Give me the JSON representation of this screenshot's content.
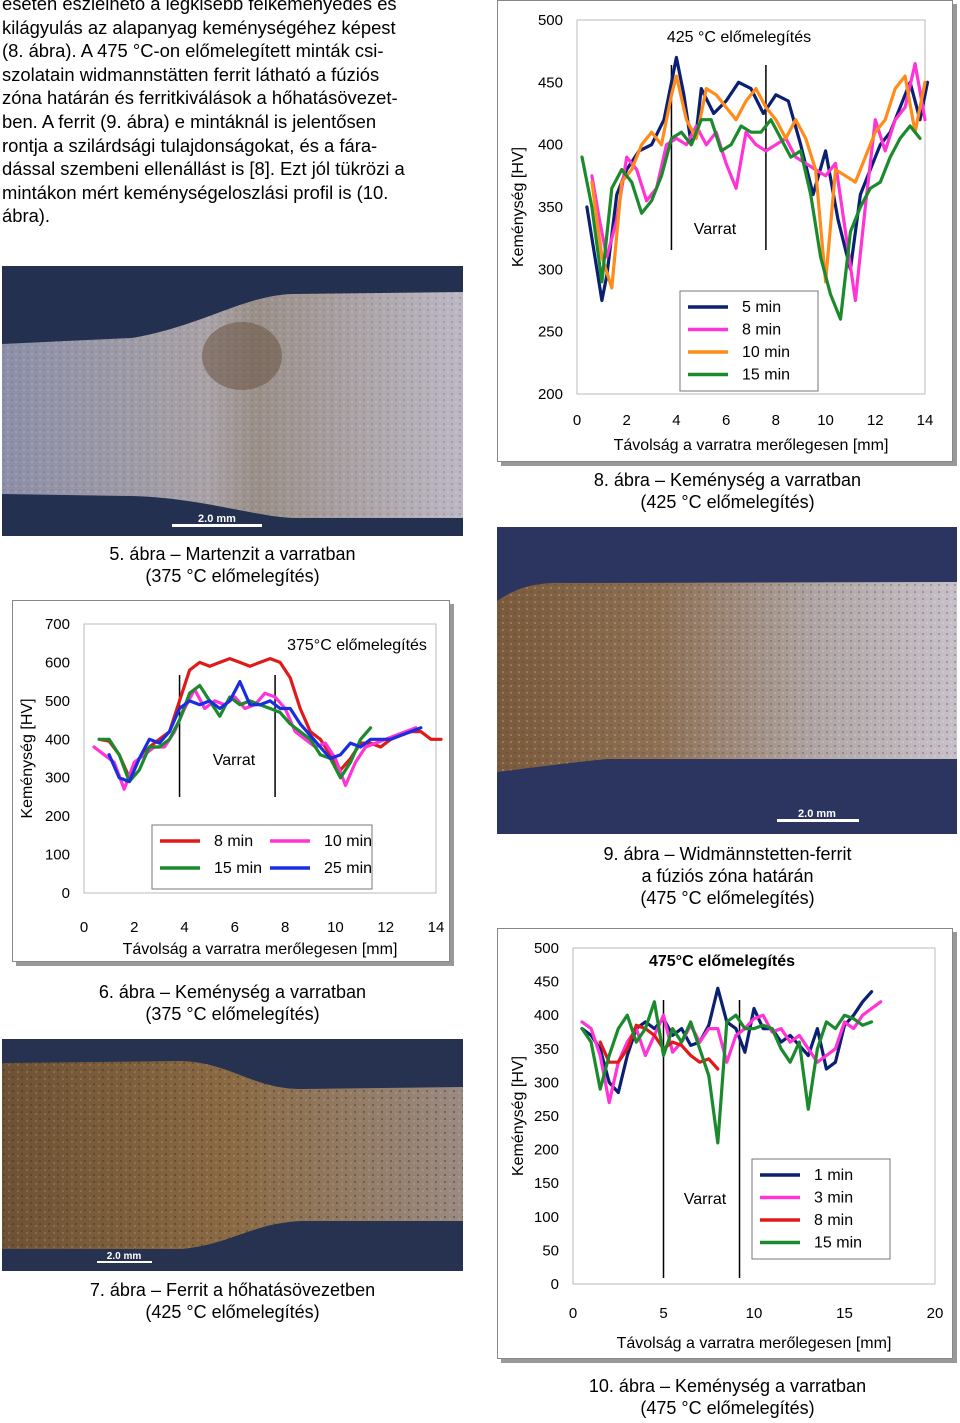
{
  "intro": {
    "lines": [
      "esetén észlelhető a legkisebb felkeményedés és",
      "kilágyulás az alapanyag keménységéhez képest",
      "(8. ábra). A 475 °C-on előmelegített minták csi-",
      "szolatain widmannstätten ferrit látható a fúziós",
      "zóna határán és ferritkiválások a hőhatásövezet-",
      "ben. A ferrit (9. ábra) e mintáknál is jelentősen",
      "rontja a szilárdsági tulajdonságokat, és a fára-",
      "dással szembeni ellenállást is [8]. Ezt jól tükrözi a",
      "mintákon mért keménységeloszlási profil is (10.",
      "ábra)."
    ]
  },
  "figures": {
    "fig5": {
      "caption_line1": "5. ábra – Martenzit a varratban",
      "caption_line2": "(375 °C előmelegítés)",
      "scale_bar": "2.0 mm"
    },
    "fig6": {
      "caption_line1": "6. ábra – Keménység a varratban",
      "caption_line2": "(375 °C előmelegítés)"
    },
    "fig7": {
      "caption_line1": "7. ábra – Ferrit a hőhatásövezetben",
      "caption_line2": "(425 °C előmelegítés)",
      "scale_bar": "2.0 mm"
    },
    "fig8": {
      "caption_line1": "8. ábra – Keménység a varratban",
      "caption_line2": "(425 °C előmelegítés)"
    },
    "fig9": {
      "caption_line1": "9. ábra – Widmännstetten-ferrit",
      "caption_line2": "a fúziós zóna határán",
      "caption_line3": "(475 °C előmelegítés)",
      "scale_bar": "2.0 mm"
    },
    "fig10": {
      "caption_line1": "10. ábra – Keménység a varratban",
      "caption_line2": "(475 °C előmelegítés)"
    }
  },
  "chart_data": [
    {
      "id": "fig8-chart",
      "type": "line",
      "title": "425 °C előmelegítés",
      "xlabel": "Távolság a varratra merőlegesen [mm]",
      "ylabel": "Keménység [HV]",
      "xlim": [
        0,
        14
      ],
      "ylim": [
        200,
        500
      ],
      "xticks": [
        "0",
        "2",
        "4",
        "6",
        "8",
        "10",
        "12",
        "14"
      ],
      "yticks": [
        "200",
        "250",
        "300",
        "350",
        "400",
        "450",
        "500"
      ],
      "annotation": "Varrat",
      "weld_marks_x": [
        3.8,
        7.6
      ],
      "legend_position": "bottom-right",
      "series": [
        {
          "name": "5 min",
          "color": "#0b1f73",
          "x": [
            0.4,
            0.8,
            1.0,
            1.2,
            1.6,
            2.0,
            2.5,
            3.0,
            3.5,
            3.8,
            4.0,
            4.3,
            4.6,
            4.8,
            5.0,
            5.5,
            6.0,
            6.5,
            7.0,
            7.5,
            8.0,
            8.5,
            9.0,
            9.5,
            10.0,
            10.5,
            11.0,
            11.4,
            11.8,
            12.2,
            12.6,
            13.0,
            13.4,
            13.8,
            14.1
          ],
          "values": [
            350,
            300,
            275,
            295,
            360,
            380,
            395,
            400,
            420,
            450,
            470,
            440,
            400,
            410,
            445,
            425,
            435,
            450,
            445,
            425,
            440,
            435,
            400,
            360,
            395,
            340,
            300,
            360,
            380,
            400,
            410,
            430,
            450,
            420,
            450
          ]
        },
        {
          "name": "8 min",
          "color": "#ff33d6",
          "x": [
            0.6,
            0.9,
            1.2,
            1.6,
            2.0,
            2.4,
            2.8,
            3.2,
            3.6,
            4.0,
            4.4,
            4.8,
            5.2,
            5.6,
            6.0,
            6.4,
            6.8,
            7.2,
            7.6,
            8.0,
            8.4,
            8.8,
            9.2,
            9.6,
            10.0,
            10.4,
            10.8,
            11.2,
            11.6,
            12.0,
            12.4,
            12.8,
            13.2,
            13.6,
            14.0
          ],
          "values": [
            375,
            340,
            310,
            340,
            390,
            380,
            355,
            365,
            400,
            405,
            400,
            415,
            400,
            410,
            385,
            365,
            410,
            400,
            395,
            400,
            405,
            390,
            385,
            380,
            375,
            385,
            330,
            275,
            350,
            420,
            395,
            420,
            430,
            465,
            420
          ]
        },
        {
          "name": "10 min",
          "color": "#ff8c1a",
          "x": [
            0.6,
            1.0,
            1.4,
            1.8,
            2.2,
            2.6,
            3.0,
            3.4,
            3.8,
            4.0,
            4.4,
            4.8,
            5.2,
            5.6,
            6.0,
            6.4,
            6.8,
            7.2,
            7.6,
            8.0,
            8.4,
            8.8,
            9.2,
            9.6,
            10.0,
            10.4,
            10.8,
            11.2,
            11.6,
            12.0,
            12.4,
            12.8,
            13.2,
            13.6,
            14.0
          ],
          "values": [
            370,
            310,
            285,
            370,
            380,
            400,
            410,
            400,
            440,
            455,
            420,
            405,
            445,
            440,
            430,
            420,
            435,
            445,
            430,
            420,
            405,
            420,
            405,
            380,
            290,
            380,
            375,
            370,
            390,
            410,
            420,
            445,
            455,
            410,
            450
          ]
        },
        {
          "name": "15 min",
          "color": "#1b8a2d",
          "x": [
            0.2,
            0.6,
            1.0,
            1.4,
            1.8,
            2.2,
            2.6,
            3.0,
            3.4,
            3.8,
            4.2,
            4.6,
            5.0,
            5.4,
            5.8,
            6.2,
            6.6,
            7.0,
            7.4,
            7.8,
            8.2,
            8.6,
            9.0,
            9.4,
            9.8,
            10.2,
            10.6,
            11.0,
            11.4,
            11.8,
            12.2,
            12.6,
            13.0,
            13.4,
            13.8
          ],
          "values": [
            390,
            350,
            290,
            365,
            380,
            370,
            345,
            355,
            375,
            405,
            410,
            400,
            420,
            420,
            395,
            400,
            415,
            410,
            410,
            420,
            405,
            390,
            395,
            360,
            310,
            280,
            260,
            330,
            350,
            365,
            370,
            390,
            405,
            415,
            405
          ]
        }
      ]
    },
    {
      "id": "fig6-chart",
      "type": "line",
      "title": "375°C előmelegítés",
      "xlabel": "Távolság a varratra merőlegesen [mm]",
      "ylabel": "Keménység [HV]",
      "xlim": [
        0,
        14
      ],
      "ylim": [
        0,
        700
      ],
      "xticks": [
        "0",
        "2",
        "4",
        "6",
        "8",
        "10",
        "12",
        "14"
      ],
      "yticks": [
        "0",
        "100",
        "200",
        "300",
        "400",
        "500",
        "600",
        "700"
      ],
      "annotation": "Varrat",
      "weld_marks_x": [
        3.8,
        7.6
      ],
      "legend_position": "bottom-right",
      "series": [
        {
          "name": "8 min",
          "color": "#e01a1a",
          "x": [
            0.6,
            1.0,
            1.4,
            1.8,
            2.2,
            2.6,
            3.0,
            3.4,
            3.8,
            4.2,
            4.6,
            5.0,
            5.4,
            5.8,
            6.2,
            6.6,
            7.0,
            7.4,
            7.8,
            8.2,
            8.6,
            9.0,
            9.4,
            9.8,
            10.2,
            10.6,
            11.0,
            11.4,
            11.8,
            12.2,
            12.6,
            13.0,
            13.4,
            13.8,
            14.2
          ],
          "values": [
            400,
            395,
            360,
            300,
            350,
            380,
            400,
            420,
            500,
            580,
            600,
            590,
            600,
            610,
            600,
            590,
            600,
            610,
            600,
            560,
            480,
            420,
            400,
            360,
            320,
            350,
            390,
            390,
            380,
            400,
            410,
            420,
            420,
            400,
            400
          ]
        },
        {
          "name": "10 min",
          "color": "#ff33d6",
          "x": [
            0.4,
            0.8,
            1.2,
            1.6,
            2.0,
            2.4,
            2.8,
            3.2,
            3.6,
            4.0,
            4.4,
            4.8,
            5.2,
            5.6,
            6.0,
            6.4,
            6.8,
            7.2,
            7.6,
            8.0,
            8.4,
            8.8,
            9.2,
            9.6,
            10.0,
            10.4,
            10.8,
            11.2,
            11.6,
            12.0,
            12.4,
            12.8,
            13.2
          ],
          "values": [
            380,
            360,
            340,
            270,
            340,
            360,
            380,
            380,
            420,
            480,
            530,
            480,
            500,
            490,
            510,
            480,
            490,
            520,
            510,
            480,
            420,
            400,
            380,
            390,
            350,
            280,
            340,
            380,
            390,
            400,
            410,
            420,
            430
          ]
        },
        {
          "name": "15 min",
          "color": "#1b8a2d",
          "x": [
            0.6,
            1.0,
            1.4,
            1.8,
            2.2,
            2.6,
            3.0,
            3.4,
            3.8,
            4.2,
            4.6,
            5.0,
            5.4,
            5.8,
            6.2,
            6.6,
            7.0,
            7.4,
            7.8,
            8.2,
            8.6,
            9.0,
            9.4,
            9.8,
            10.2,
            10.6,
            11.0,
            11.4
          ],
          "values": [
            400,
            400,
            360,
            290,
            320,
            380,
            380,
            400,
            450,
            520,
            540,
            500,
            460,
            510,
            490,
            500,
            490,
            480,
            470,
            440,
            420,
            400,
            360,
            350,
            300,
            340,
            400,
            430
          ]
        },
        {
          "name": "25 min",
          "color": "#1a2ee0",
          "x": [
            1.0,
            1.4,
            1.8,
            2.2,
            2.6,
            3.0,
            3.4,
            3.8,
            4.2,
            4.6,
            5.0,
            5.4,
            5.8,
            6.2,
            6.6,
            7.0,
            7.4,
            7.8,
            8.2,
            8.6,
            9.0,
            9.4,
            9.8,
            10.2,
            10.6,
            11.0,
            11.4,
            11.8,
            12.2,
            12.6,
            13.0,
            13.4
          ],
          "values": [
            360,
            300,
            290,
            350,
            400,
            390,
            420,
            480,
            500,
            490,
            500,
            480,
            500,
            550,
            490,
            490,
            500,
            480,
            480,
            440,
            410,
            380,
            350,
            360,
            390,
            380,
            400,
            400,
            400,
            410,
            420,
            430
          ]
        }
      ]
    },
    {
      "id": "fig10-chart",
      "type": "line",
      "title": "475°C előmelegítés",
      "xlabel": "Távolság a varratra merőlegesen [mm]",
      "ylabel": "Keménység [HV]",
      "xlim": [
        0,
        20
      ],
      "ylim": [
        0,
        500
      ],
      "xticks": [
        "0",
        "5",
        "10",
        "15",
        "20"
      ],
      "yticks": [
        "0",
        "50",
        "100",
        "150",
        "200",
        "250",
        "300",
        "350",
        "400",
        "450",
        "500"
      ],
      "annotation": "Varrat",
      "weld_marks_x": [
        5.0,
        9.2
      ],
      "legend_position": "bottom-right",
      "series": [
        {
          "name": "1 min",
          "color": "#0b1f73",
          "x": [
            0.5,
            1.0,
            1.5,
            2.0,
            2.5,
            3.0,
            3.5,
            4.0,
            4.5,
            5.0,
            5.5,
            6.0,
            6.5,
            7.0,
            7.5,
            8.0,
            8.5,
            9.0,
            9.5,
            10.0,
            10.5,
            11.0,
            11.5,
            12.0,
            12.5,
            13.0,
            13.5,
            14.0,
            14.5,
            15.0,
            15.5,
            16.0,
            16.5
          ],
          "values": [
            380,
            370,
            350,
            300,
            285,
            340,
            380,
            390,
            380,
            395,
            370,
            380,
            355,
            360,
            385,
            440,
            390,
            380,
            345,
            410,
            380,
            380,
            360,
            370,
            355,
            340,
            380,
            320,
            330,
            385,
            400,
            420,
            435
          ]
        },
        {
          "name": "3 min",
          "color": "#ff33d6",
          "x": [
            0.5,
            1.0,
            1.5,
            2.0,
            2.5,
            3.0,
            3.5,
            4.0,
            4.5,
            5.0,
            5.5,
            6.0,
            6.5,
            7.0,
            7.5,
            8.0,
            8.5,
            9.0,
            9.5,
            10.0,
            10.5,
            11.0,
            11.5,
            12.0,
            12.5,
            13.0,
            13.5,
            14.0,
            14.5,
            15.0,
            15.5,
            16.0,
            16.5,
            17.0
          ],
          "values": [
            390,
            380,
            340,
            270,
            330,
            360,
            380,
            340,
            370,
            400,
            345,
            360,
            385,
            360,
            380,
            380,
            330,
            370,
            380,
            395,
            400,
            375,
            380,
            360,
            370,
            350,
            330,
            340,
            350,
            390,
            380,
            400,
            410,
            420
          ]
        },
        {
          "name": "8 min",
          "color": "#e01a1a",
          "x": [
            1.5,
            2.0,
            2.5,
            3.0,
            3.5,
            4.0,
            4.5,
            5.0,
            5.5,
            6.0,
            6.5,
            7.0,
            7.5,
            8.0
          ],
          "values": [
            360,
            330,
            330,
            350,
            385,
            380,
            370,
            350,
            360,
            355,
            340,
            330,
            335,
            320
          ]
        },
        {
          "name": "15 min",
          "color": "#1b8a2d",
          "x": [
            0.5,
            1.0,
            1.5,
            2.0,
            2.5,
            3.0,
            3.5,
            4.0,
            4.5,
            5.0,
            5.5,
            6.0,
            6.5,
            7.0,
            7.5,
            8.0,
            8.5,
            9.0,
            9.5,
            10.0,
            10.5,
            11.0,
            11.5,
            12.0,
            12.5,
            13.0,
            13.5,
            14.0,
            14.5,
            15.0,
            15.5,
            16.0,
            16.5
          ],
          "values": [
            380,
            360,
            290,
            340,
            380,
            400,
            360,
            380,
            420,
            340,
            380,
            360,
            390,
            350,
            310,
            210,
            390,
            400,
            380,
            380,
            385,
            380,
            350,
            330,
            360,
            260,
            350,
            390,
            380,
            400,
            395,
            385,
            390
          ]
        }
      ]
    }
  ]
}
